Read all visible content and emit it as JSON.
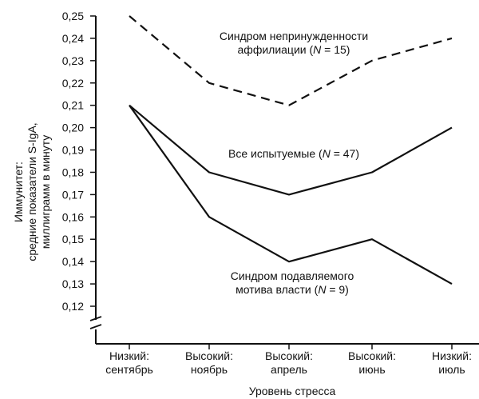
{
  "chart_data": {
    "type": "line",
    "title": "",
    "xlabel": "Уровень стресса",
    "ylabel_lines": [
      "Иммунитет:",
      "средние показатели S-IgA,",
      "миллиграмм в минуту"
    ],
    "ylim": [
      0.12,
      0.25
    ],
    "y_ticks": [
      "0,12",
      "0,13",
      "0,14",
      "0,15",
      "0,16",
      "0,17",
      "0,18",
      "0,19",
      "0,20",
      "0,21",
      "0,22",
      "0,23",
      "0,24",
      "0,25"
    ],
    "y_tick_values": [
      0.12,
      0.13,
      0.14,
      0.15,
      0.16,
      0.17,
      0.18,
      0.19,
      0.2,
      0.21,
      0.22,
      0.23,
      0.24,
      0.25
    ],
    "axis_break": true,
    "categories": [
      [
        "Низкий:",
        "сентябрь"
      ],
      [
        "Высокий:",
        "ноябрь"
      ],
      [
        "Высокий:",
        "апрель"
      ],
      [
        "Высокий:",
        "июнь"
      ],
      [
        "Низкий:",
        "июль"
      ]
    ],
    "series": [
      {
        "name": "affiliation",
        "label_lines": [
          "Синдром непринужденности",
          "аффилиации (N = 15)"
        ],
        "style": "dashed",
        "values": [
          0.25,
          0.22,
          0.21,
          0.23,
          0.24
        ]
      },
      {
        "name": "all",
        "label_lines": [
          "Все испытуемые (N = 47)"
        ],
        "style": "solid",
        "values": [
          0.21,
          0.18,
          0.17,
          0.18,
          0.2
        ]
      },
      {
        "name": "power",
        "label_lines": [
          "Синдром подавляемого",
          "мотива власти (N = 9)"
        ],
        "style": "solid",
        "values": [
          0.21,
          0.16,
          0.14,
          0.15,
          0.13
        ]
      }
    ],
    "line_color": "#111111"
  }
}
